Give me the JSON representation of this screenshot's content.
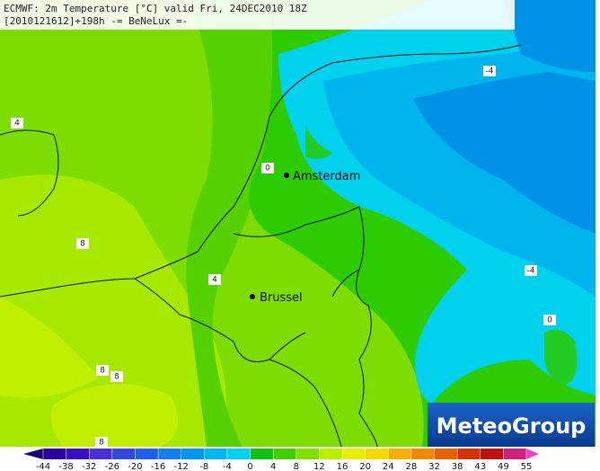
{
  "header": {
    "line1": "ECMWF: 2m Temperature [°C] valid Fri, 24DEC2010 18Z",
    "line2": "[2010121612]+198h  -= BeNeLux =-"
  },
  "cities": [
    {
      "label": "Amsterdam"
    },
    {
      "label": "Brussel"
    }
  ],
  "contour_labels": [
    "-4",
    "4",
    "0",
    "8",
    "4",
    "-4",
    "0",
    "8",
    "8",
    "8"
  ],
  "logo": "MeteoGroup",
  "legend": {
    "ticks": [
      -44,
      -38,
      -32,
      -26,
      -20,
      -16,
      -12,
      -8,
      -4,
      0,
      4,
      8,
      12,
      16,
      20,
      24,
      28,
      32,
      38,
      43,
      49,
      55
    ],
    "colors": [
      "#1a0078",
      "#2a00a0",
      "#3a10c0",
      "#4a30d8",
      "#3048e0",
      "#2060e8",
      "#1080ee",
      "#0098ee",
      "#00b8f0",
      "#00d0f0",
      "#10c010",
      "#40d000",
      "#80e000",
      "#b8f000",
      "#e8f000",
      "#f8d800",
      "#f8b000",
      "#f08800",
      "#e86000",
      "#d83000",
      "#c01010",
      "#d02080",
      "#f040c0"
    ]
  }
}
